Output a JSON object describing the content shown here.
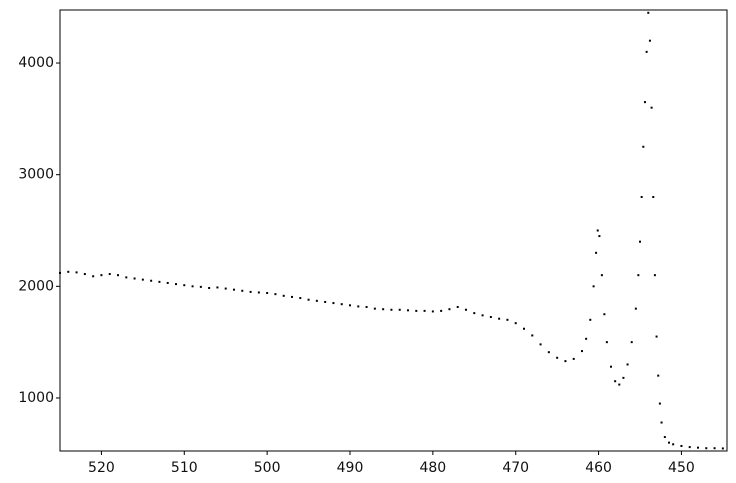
{
  "chart_data": {
    "type": "scatter",
    "color": "#000000",
    "xlim": [
      525,
      444.5
    ],
    "ylim": [
      525,
      4475
    ],
    "xticks": [
      520,
      510,
      500,
      490,
      480,
      470,
      460,
      450
    ],
    "yticks": [
      1000,
      2000,
      3000,
      4000
    ],
    "x": [
      525,
      524,
      523,
      522,
      521,
      520,
      519,
      518,
      517,
      516,
      515,
      514,
      513,
      512,
      511,
      510,
      509,
      508,
      507,
      506,
      505,
      504,
      503,
      502,
      501,
      500,
      499,
      498,
      497,
      496,
      495,
      494,
      493,
      492,
      491,
      490,
      489,
      488,
      487,
      486,
      485,
      484,
      483,
      482,
      481,
      480,
      479,
      478,
      477,
      476,
      475,
      474,
      473,
      472,
      471,
      470,
      469,
      468,
      467,
      466,
      465,
      464,
      463,
      462,
      461.5,
      461,
      460.6,
      460.3,
      460.1,
      459.9,
      459.6,
      459.3,
      459,
      458.5,
      458,
      457.5,
      457,
      456.5,
      456,
      455.5,
      455.2,
      455,
      454.8,
      454.6,
      454.4,
      454.2,
      454,
      453.8,
      453.6,
      453.4,
      453.2,
      453,
      452.8,
      452.6,
      452.4,
      452,
      451.5,
      451,
      450,
      449,
      448,
      447,
      446,
      445
    ],
    "values": [
      2120,
      2130,
      2125,
      2110,
      2090,
      2100,
      2110,
      2100,
      2080,
      2070,
      2060,
      2050,
      2040,
      2030,
      2020,
      2010,
      2000,
      1995,
      1985,
      1990,
      1980,
      1970,
      1960,
      1950,
      1945,
      1940,
      1930,
      1915,
      1905,
      1895,
      1880,
      1870,
      1860,
      1850,
      1840,
      1830,
      1820,
      1815,
      1800,
      1795,
      1790,
      1790,
      1785,
      1780,
      1780,
      1775,
      1780,
      1795,
      1815,
      1790,
      1760,
      1740,
      1725,
      1710,
      1700,
      1670,
      1620,
      1560,
      1480,
      1410,
      1360,
      1330,
      1350,
      1420,
      1530,
      1700,
      2000,
      2300,
      2500,
      2450,
      2100,
      1750,
      1500,
      1280,
      1150,
      1120,
      1180,
      1300,
      1500,
      1800,
      2100,
      2400,
      2800,
      3250,
      3650,
      4100,
      4450,
      4200,
      3600,
      2800,
      2100,
      1550,
      1200,
      950,
      780,
      650,
      600,
      585,
      570,
      560,
      555,
      550,
      550,
      548
    ]
  }
}
